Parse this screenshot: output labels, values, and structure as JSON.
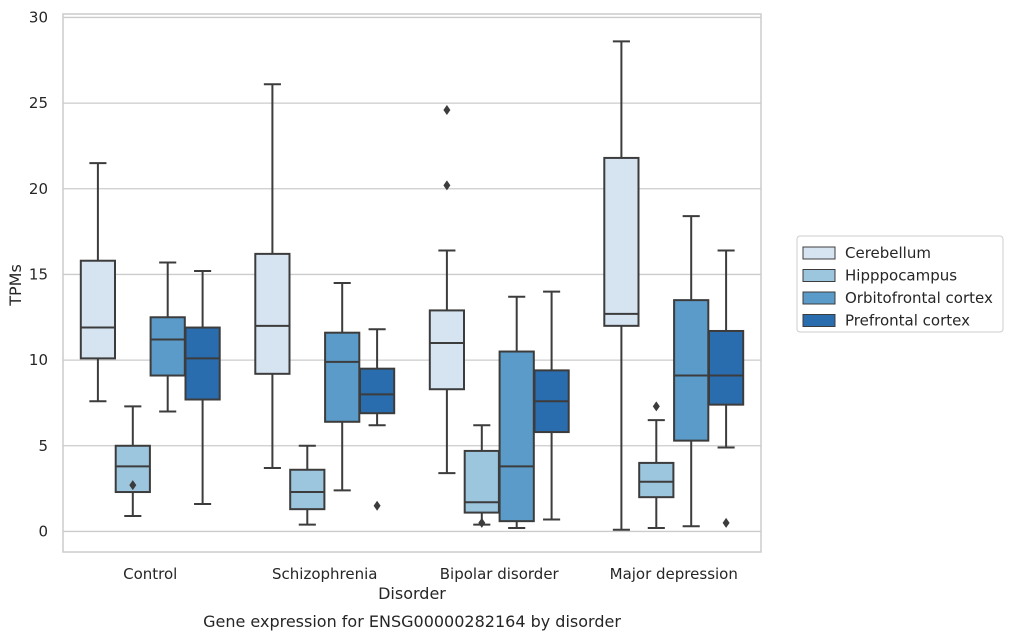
{
  "chart_data": {
    "type": "boxplot",
    "title": "Gene expression for ENSG00000282164 by disorder",
    "xlabel": "Disorder",
    "ylabel": "TPMs",
    "ylim": [
      -1.2,
      30.2
    ],
    "yticks": [
      0,
      5,
      10,
      15,
      20,
      25,
      30
    ],
    "categories": [
      "Control",
      "Schizophrenia",
      "Bipolar disorder",
      "Major depression"
    ],
    "grid": "horizontal",
    "legend_position": "right",
    "series": [
      {
        "name": "Cerebellum",
        "color": "#d6e4f2",
        "boxes": [
          {
            "whisker_low": 7.6,
            "q1": 10.1,
            "median": 11.9,
            "q3": 15.8,
            "whisker_high": 21.5,
            "outliers": []
          },
          {
            "whisker_low": 3.7,
            "q1": 9.2,
            "median": 12.0,
            "q3": 16.2,
            "whisker_high": 26.1,
            "outliers": []
          },
          {
            "whisker_low": 3.4,
            "q1": 8.3,
            "median": 11.0,
            "q3": 12.9,
            "whisker_high": 16.4,
            "outliers": [
              24.6,
              20.2
            ]
          },
          {
            "whisker_low": 0.1,
            "q1": 12.0,
            "median": 12.7,
            "q3": 21.8,
            "whisker_high": 28.6,
            "outliers": []
          }
        ]
      },
      {
        "name": "Hipppocampus",
        "color": "#9cc5de",
        "boxes": [
          {
            "whisker_low": 0.9,
            "q1": 2.3,
            "median": 3.8,
            "q3": 5.0,
            "whisker_high": 7.3,
            "outliers": [
              2.7
            ]
          },
          {
            "whisker_low": 0.4,
            "q1": 1.3,
            "median": 2.3,
            "q3": 3.6,
            "whisker_high": 5.0,
            "outliers": []
          },
          {
            "whisker_low": 0.4,
            "q1": 1.1,
            "median": 1.7,
            "q3": 4.7,
            "whisker_high": 6.2,
            "outliers": [
              0.5
            ]
          },
          {
            "whisker_low": 0.2,
            "q1": 2.0,
            "median": 2.9,
            "q3": 4.0,
            "whisker_high": 6.5,
            "outliers": [
              7.3
            ]
          }
        ]
      },
      {
        "name": "Orbitofrontal cortex",
        "color": "#5a9bc9",
        "boxes": [
          {
            "whisker_low": 7.0,
            "q1": 9.1,
            "median": 11.2,
            "q3": 12.5,
            "whisker_high": 15.7,
            "outliers": []
          },
          {
            "whisker_low": 2.4,
            "q1": 6.4,
            "median": 9.9,
            "q3": 11.6,
            "whisker_high": 14.5,
            "outliers": []
          },
          {
            "whisker_low": 0.2,
            "q1": 0.6,
            "median": 3.8,
            "q3": 10.5,
            "whisker_high": 13.7,
            "outliers": []
          },
          {
            "whisker_low": 0.3,
            "q1": 5.3,
            "median": 9.1,
            "q3": 13.5,
            "whisker_high": 18.4,
            "outliers": []
          }
        ]
      },
      {
        "name": "Prefrontal cortex",
        "color": "#2a6daf",
        "boxes": [
          {
            "whisker_low": 1.6,
            "q1": 7.7,
            "median": 10.1,
            "q3": 11.9,
            "whisker_high": 15.2,
            "outliers": []
          },
          {
            "whisker_low": 6.2,
            "q1": 6.9,
            "median": 8.0,
            "q3": 9.5,
            "whisker_high": 11.8,
            "outliers": [
              1.5
            ]
          },
          {
            "whisker_low": 0.7,
            "q1": 5.8,
            "median": 7.6,
            "q3": 9.4,
            "whisker_high": 14.0,
            "outliers": []
          },
          {
            "whisker_low": 4.9,
            "q1": 7.4,
            "median": 9.1,
            "q3": 11.7,
            "whisker_high": 16.4,
            "outliers": [
              0.5
            ]
          }
        ]
      }
    ]
  }
}
